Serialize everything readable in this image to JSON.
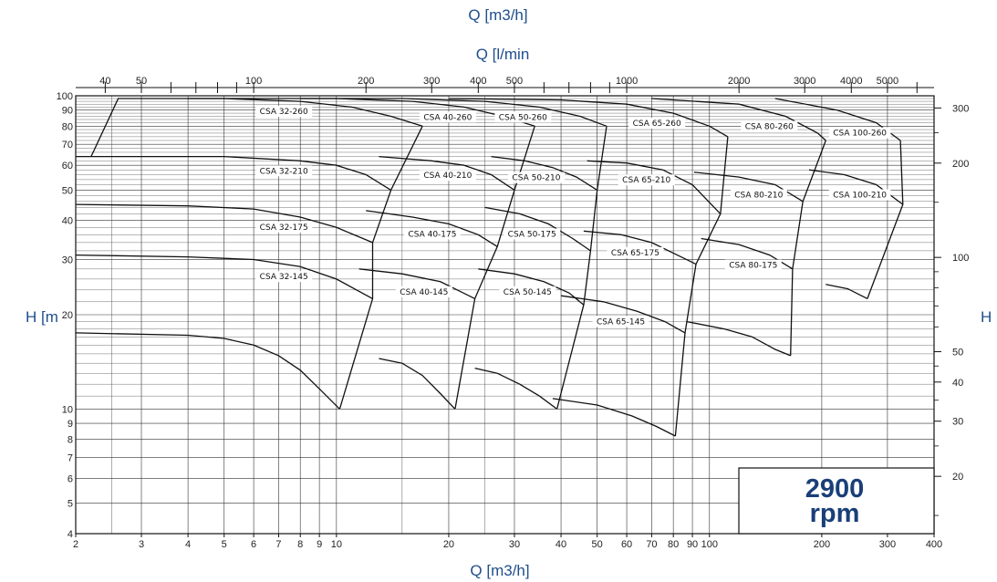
{
  "chart_data": {
    "type": "line",
    "title": "",
    "x_scale": "log",
    "y_scale": "log",
    "xlim": [
      2,
      400
    ],
    "ylim": [
      4,
      100
    ],
    "grid": true,
    "xlabel": "Q [m3/h]",
    "ylabel": "H [m",
    "top_axis_label_1": "Q [m3/h]",
    "top_axis_label_2": "Q [l/min",
    "right_axis_label": "H [ft]",
    "speed_label": [
      "2900",
      "rpm"
    ],
    "x_ticks": [
      2,
      3,
      4,
      5,
      6,
      7,
      8,
      9,
      10,
      20,
      30,
      40,
      50,
      60,
      70,
      80,
      90,
      100,
      200,
      300,
      400
    ],
    "x_tick_labels": [
      "2",
      "3",
      "4",
      "5",
      "6",
      "7",
      "8",
      "9",
      "10",
      "20",
      "30",
      "40",
      "50",
      "60",
      "70",
      "80",
      "90",
      "100",
      "200",
      "300",
      "400"
    ],
    "y_ticks": [
      4,
      5,
      6,
      7,
      8,
      9,
      10,
      20,
      30,
      40,
      50,
      60,
      70,
      80,
      90,
      100
    ],
    "y_tick_labels": [
      "4",
      "5",
      "6",
      "7",
      "8",
      "9",
      "10",
      "20",
      "30",
      "40",
      "50",
      "60",
      "70",
      "80",
      "90",
      "100"
    ],
    "top_ticks_lmin": [
      40,
      50,
      100,
      200,
      300,
      400,
      500,
      1000,
      2000,
      3000,
      4000,
      5000
    ],
    "top_tick_labels": [
      "40",
      "50",
      "100",
      "200",
      "300",
      "400",
      "500",
      "1000",
      "2000",
      "3000",
      "4000",
      "5000"
    ],
    "right_ticks_ft": [
      20,
      30,
      40,
      50,
      100,
      200,
      300
    ],
    "right_tick_labels": [
      "20",
      "30",
      "40",
      "50",
      "100",
      "200",
      "300"
    ],
    "curve_color": "#111111",
    "grid_color": "#333333",
    "accent_color": "#1f4e8c",
    "series": [
      {
        "name": "CSA 32-260",
        "x": [
          2.2,
          2.6,
          5,
          8,
          11,
          14,
          17
        ],
        "y": [
          64,
          98,
          98,
          96,
          92,
          86,
          80
        ]
      },
      {
        "name": "CSA 32-210",
        "x": [
          2,
          3,
          5,
          8,
          10,
          12,
          14
        ],
        "y": [
          64,
          64,
          64,
          62,
          60,
          56,
          50
        ]
      },
      {
        "name": "CSA 32-175",
        "x": [
          2,
          4,
          6,
          8,
          10,
          12.5
        ],
        "y": [
          45,
          44.5,
          43.5,
          41,
          38,
          34
        ]
      },
      {
        "name": "CSA 32-145",
        "x": [
          2,
          4,
          6,
          8,
          10,
          12.5
        ],
        "y": [
          31,
          30.6,
          30,
          28.5,
          26,
          22.5
        ]
      },
      {
        "name": "",
        "x": [
          2,
          4,
          5,
          6,
          7,
          8,
          9,
          10.2
        ],
        "y": [
          17.5,
          17.2,
          16.8,
          16,
          14.8,
          13.3,
          11.6,
          10
        ]
      },
      {
        "name": "CSA 40-260",
        "x": [
          4,
          10,
          16,
          22,
          28,
          34
        ],
        "y": [
          98,
          98,
          96,
          92,
          86,
          80
        ]
      },
      {
        "name": "CSA 40-210",
        "x": [
          13,
          18,
          22,
          26,
          30
        ],
        "y": [
          64,
          62,
          60,
          56,
          50
        ]
      },
      {
        "name": "CSA 40-175",
        "x": [
          12,
          16,
          20,
          24,
          27
        ],
        "y": [
          43,
          41,
          39,
          36,
          33
        ]
      },
      {
        "name": "CSA 40-145",
        "x": [
          11.5,
          15,
          19,
          23.5
        ],
        "y": [
          28,
          27,
          25.5,
          22.5
        ]
      },
      {
        "name": "",
        "x": [
          13,
          15,
          17,
          19,
          20.8
        ],
        "y": [
          14.5,
          14,
          12.8,
          11.2,
          10
        ]
      },
      {
        "name": "CSA 50-260",
        "x": [
          8,
          15,
          25,
          35,
          45,
          53
        ],
        "y": [
          98,
          98,
          96,
          92,
          86,
          80
        ]
      },
      {
        "name": "CSA 50-210",
        "x": [
          26,
          32,
          38,
          44,
          50
        ],
        "y": [
          64,
          62,
          59,
          55,
          50
        ]
      },
      {
        "name": "CSA 50-175",
        "x": [
          25,
          31,
          37,
          43,
          48
        ],
        "y": [
          44,
          42,
          39,
          35,
          32
        ]
      },
      {
        "name": "CSA 50-145",
        "x": [
          24,
          30,
          36,
          42,
          46
        ],
        "y": [
          28,
          27,
          25.5,
          23.5,
          21.5
        ]
      },
      {
        "name": "",
        "x": [
          23.5,
          27,
          31,
          35,
          39
        ],
        "y": [
          13.5,
          13,
          12,
          11,
          10
        ]
      },
      {
        "name": "CSA 65-260",
        "x": [
          20,
          40,
          60,
          80,
          100,
          112
        ],
        "y": [
          98,
          97,
          94,
          88,
          80,
          74
        ]
      },
      {
        "name": "CSA 65-210",
        "x": [
          47,
          60,
          75,
          90,
          107
        ],
        "y": [
          62,
          61,
          58,
          52,
          42
        ]
      },
      {
        "name": "CSA 65-175",
        "x": [
          46,
          58,
          70,
          82,
          92
        ],
        "y": [
          37,
          36,
          34,
          31,
          29
        ]
      },
      {
        "name": "CSA 65-145",
        "x": [
          40,
          52,
          64,
          76,
          86
        ],
        "y": [
          23,
          22,
          20.5,
          19,
          17.5
        ]
      },
      {
        "name": "",
        "x": [
          38,
          50,
          62,
          72,
          81
        ],
        "y": [
          10.8,
          10.3,
          9.5,
          8.8,
          8.2
        ]
      },
      {
        "name": "CSA 80-260",
        "x": [
          70,
          120,
          160,
          195,
          205
        ],
        "y": [
          98,
          94,
          86,
          76,
          72
        ]
      },
      {
        "name": "CSA 80-210",
        "x": [
          91,
          120,
          150,
          178
        ],
        "y": [
          57,
          55,
          52,
          46
        ]
      },
      {
        "name": "CSA 80-175",
        "x": [
          95,
          120,
          145,
          167
        ],
        "y": [
          35,
          33.5,
          31,
          28
        ]
      },
      {
        "name": "",
        "x": [
          87,
          110,
          130,
          150,
          165
        ],
        "y": [
          19,
          18,
          17,
          15.5,
          14.8
        ]
      },
      {
        "name": "CSA 100-260",
        "x": [
          150,
          220,
          280,
          325
        ],
        "y": [
          98,
          90,
          82,
          72
        ]
      },
      {
        "name": "CSA 100-210",
        "x": [
          185,
          230,
          280,
          330
        ],
        "y": [
          58,
          56,
          52,
          45
        ]
      },
      {
        "name": "",
        "x": [
          205,
          235,
          265
        ],
        "y": [
          25,
          24.2,
          22.5
        ]
      }
    ]
  }
}
